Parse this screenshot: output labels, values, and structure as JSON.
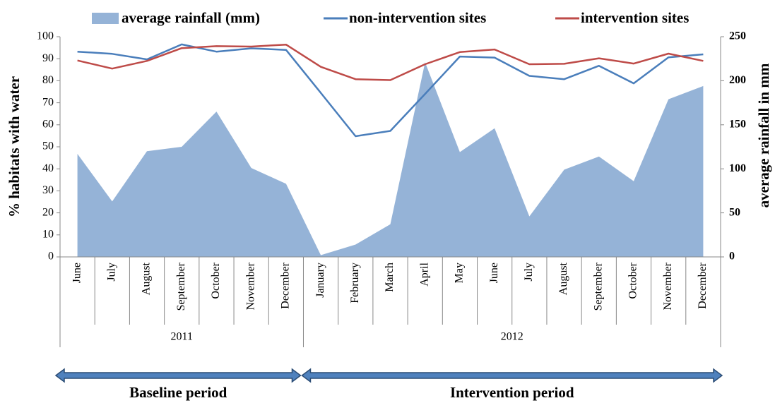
{
  "chart_data": {
    "type": "line",
    "categories": [
      "June",
      "July",
      "August",
      "September",
      "October",
      "November",
      "December",
      "January",
      "February",
      "March",
      "April",
      "May",
      "June",
      "July",
      "August",
      "September",
      "October",
      "November",
      "December"
    ],
    "groups": [
      {
        "label": "2011",
        "count": 7
      },
      {
        "label": "2012",
        "count": 12
      }
    ],
    "periods": [
      {
        "label": "Baseline period",
        "count": 7
      },
      {
        "label": "Intervention period",
        "count": 12
      }
    ],
    "series": [
      {
        "name": "average rainfall (mm)",
        "type": "area",
        "axis": "y2",
        "color": "#95b3d7",
        "values": [
          117,
          63,
          120,
          125,
          165,
          101,
          83,
          2,
          14,
          37,
          221,
          119,
          146,
          46,
          99,
          114,
          86,
          179,
          194
        ]
      },
      {
        "name": "non-intervention sites",
        "type": "line",
        "color": "#4a7ebb",
        "values": [
          93.2,
          92.2,
          89.7,
          96.5,
          93.2,
          94.7,
          94,
          74.5,
          54.8,
          57.2,
          74,
          91,
          90.5,
          82.2,
          80.7,
          86.8,
          78.8,
          90.6,
          92
        ]
      },
      {
        "name": "intervention sites",
        "type": "line",
        "color": "#be4b48",
        "values": [
          89.2,
          85.5,
          89,
          94.8,
          95.7,
          95.5,
          96.4,
          86.3,
          80.7,
          80.3,
          87.5,
          93,
          94.2,
          87.5,
          87.7,
          90.2,
          87.8,
          92.3,
          89
        ]
      }
    ],
    "ylabel": "% habitats with water",
    "y2label": "average rainfall in mm",
    "ylim": [
      0,
      100
    ],
    "yticks": [
      0,
      10,
      20,
      30,
      40,
      50,
      60,
      70,
      80,
      90,
      100
    ],
    "y2lim": [
      0,
      250
    ],
    "y2ticks": [
      0,
      50,
      100,
      150,
      200,
      250
    ],
    "legend": "top"
  }
}
